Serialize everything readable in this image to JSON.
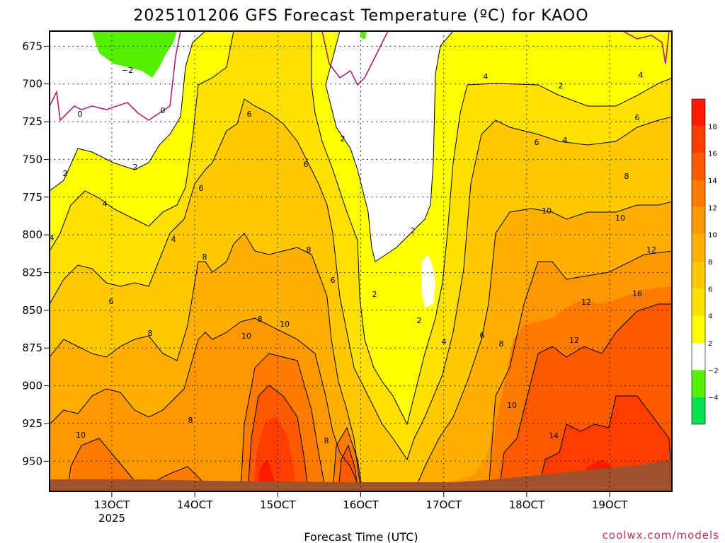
{
  "chart_data": {
    "type": "heatmap",
    "title": "2025101206 GFS Forecast Temperature (ºC) for KAOO",
    "xlabel": "Forecast Time (UTC)",
    "ylabel": "",
    "x_ticks": [
      "13OCT",
      "14OCT",
      "15OCT",
      "16OCT",
      "17OCT",
      "18OCT",
      "19OCT"
    ],
    "x_year": "2025",
    "x_range_days": [
      12.25,
      19.75
    ],
    "y_ticks": [
      "675",
      "700",
      "725",
      "750",
      "775",
      "800",
      "825",
      "850",
      "875",
      "900",
      "925",
      "950"
    ],
    "y_range_hpa": [
      665,
      970
    ],
    "colorbar": {
      "levels": [
        "18",
        "16",
        "14",
        "12",
        "10",
        "8",
        "6",
        "4",
        "2",
        "−2",
        "−4"
      ],
      "colors": [
        "#ff1a00",
        "#ff3d00",
        "#ff5a00",
        "#ff7b00",
        "#ff9800",
        "#ffaf00",
        "#ffc800",
        "#ffe100",
        "#ffff00",
        "#ffffff",
        "#55f000",
        "#00e050"
      ]
    },
    "contour_labels": [
      "0",
      "0",
      "−2",
      "2",
      "2",
      "2",
      "2",
      "2",
      "2",
      "2",
      "4",
      "4",
      "4",
      "4",
      "4",
      "4",
      "4",
      "6",
      "6",
      "6",
      "6",
      "6",
      "6",
      "6",
      "6",
      "8",
      "8",
      "8",
      "8",
      "8",
      "8",
      "8",
      "8",
      "10",
      "10",
      "10",
      "10",
      "10",
      "10",
      "12",
      "12",
      "12",
      "14",
      "16"
    ],
    "credit": "coolwx.com/models"
  }
}
